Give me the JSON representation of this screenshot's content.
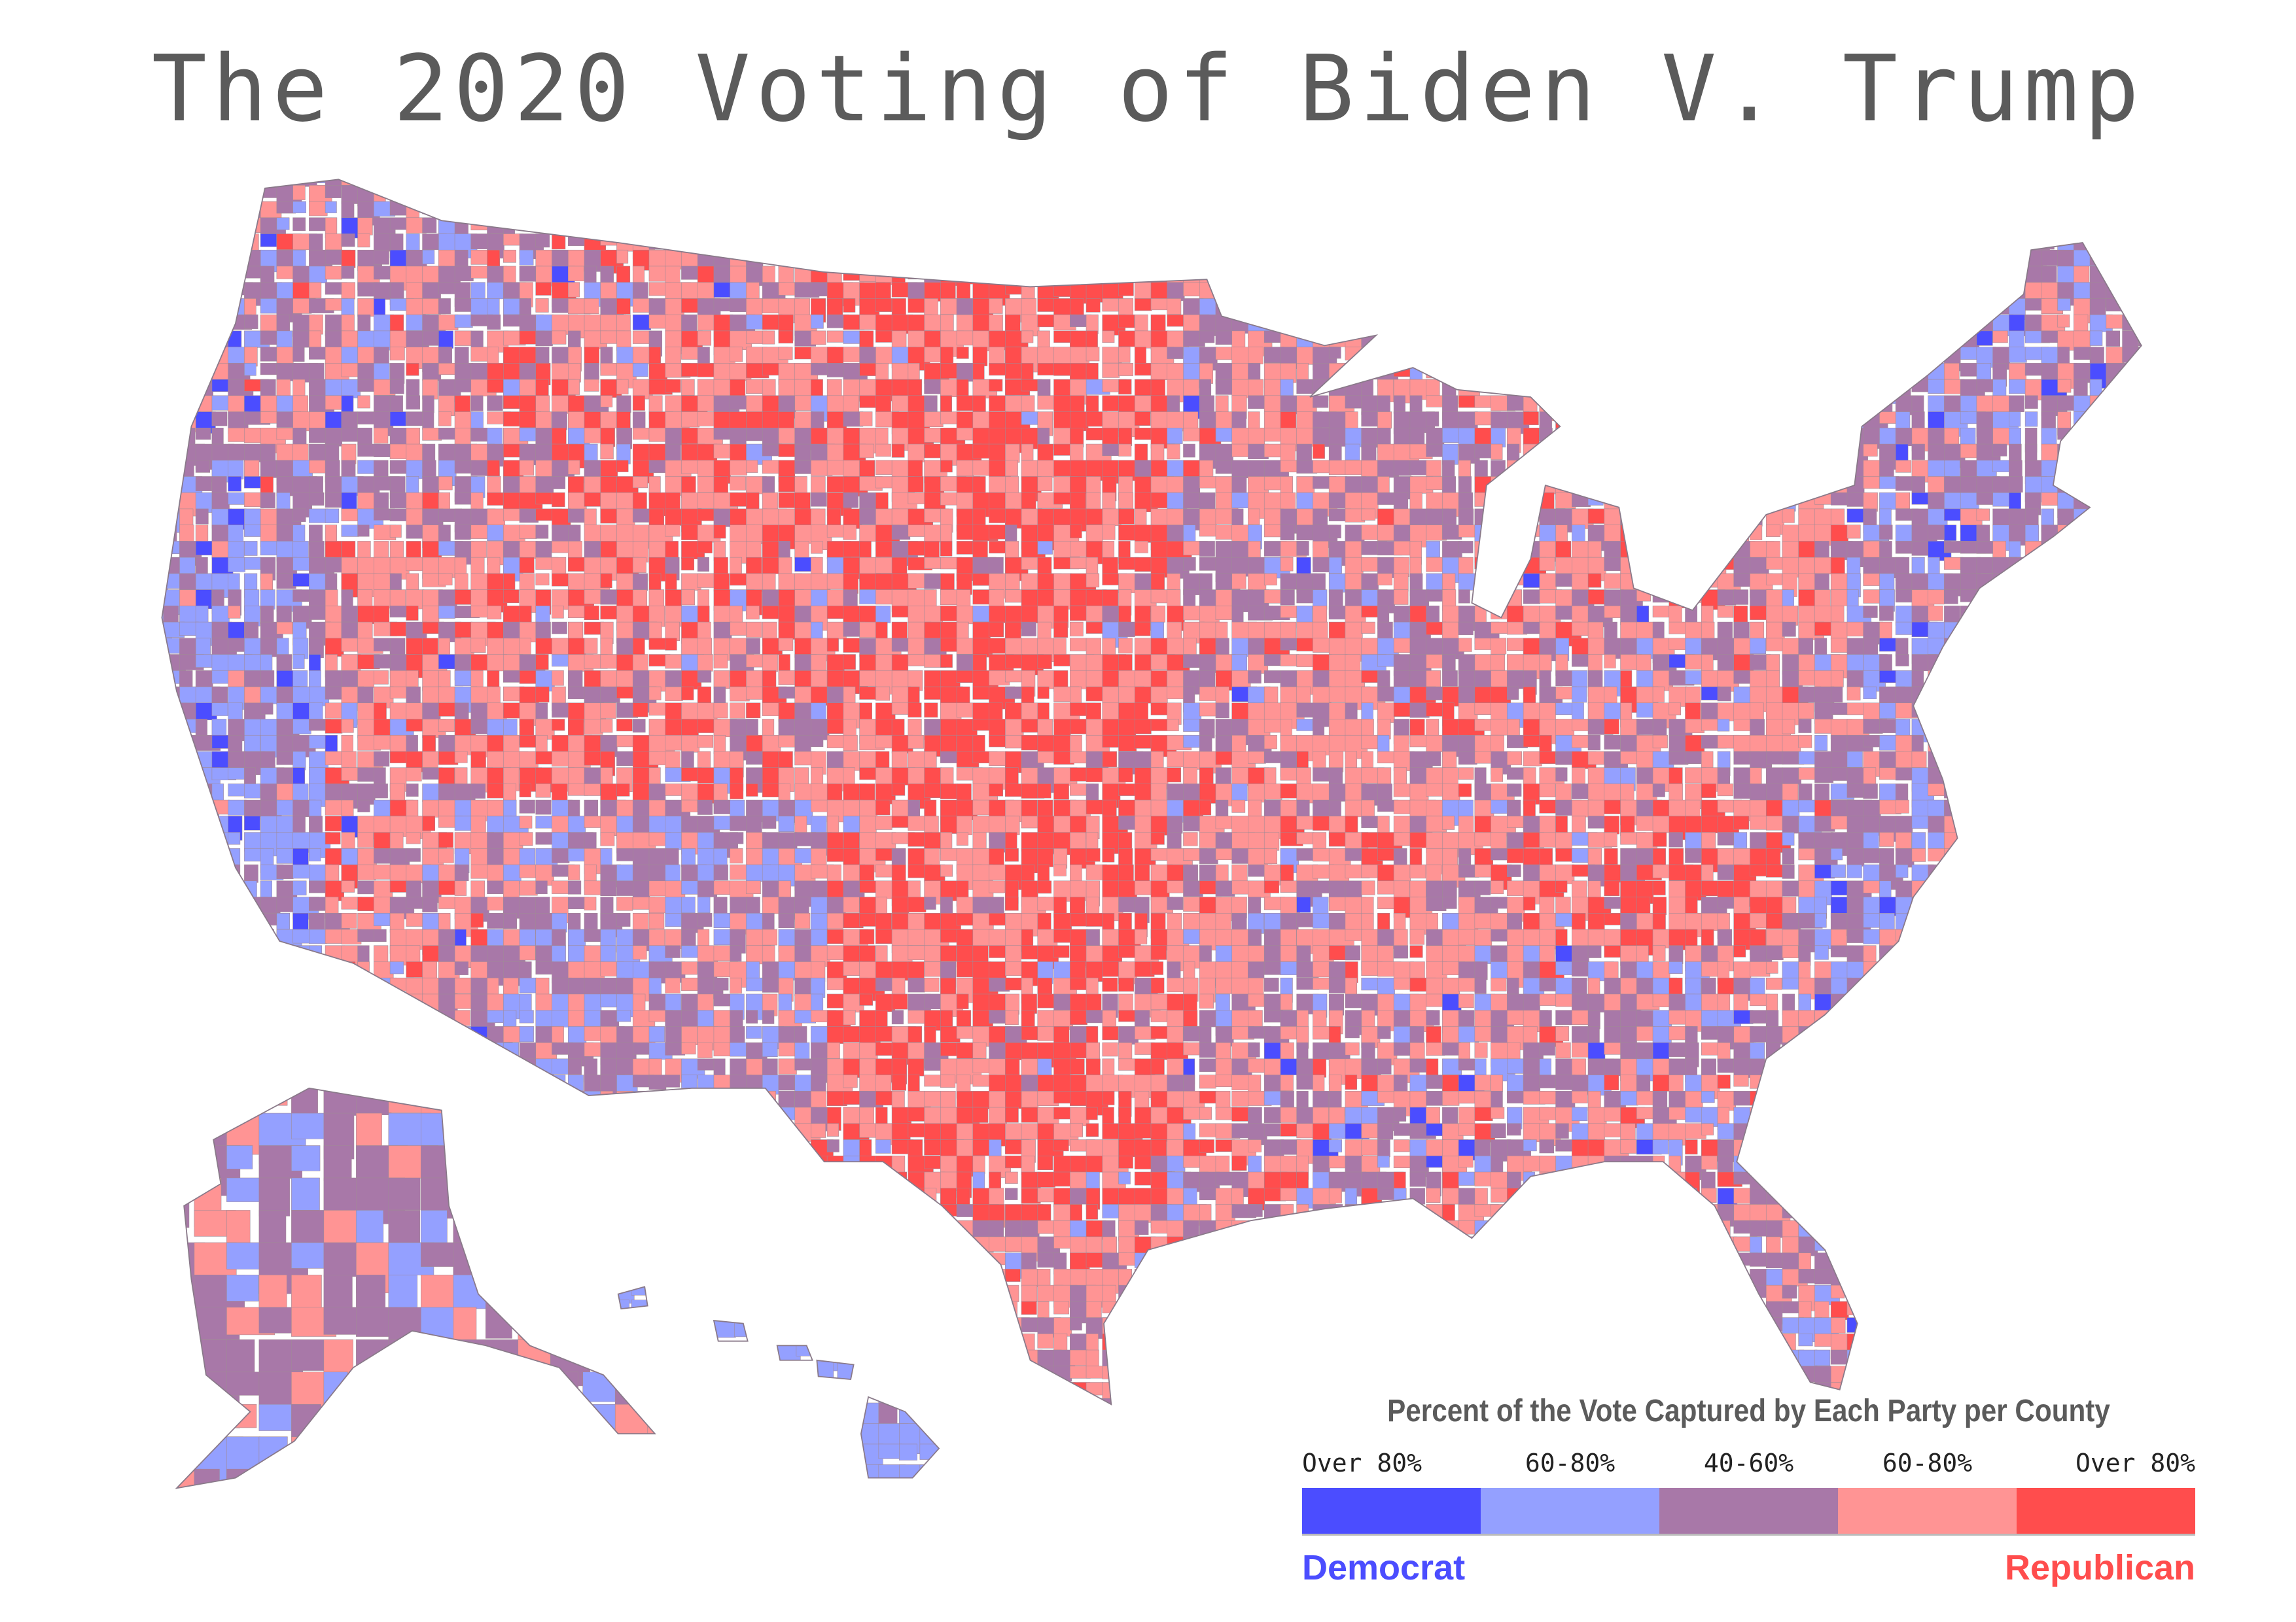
{
  "title": "The 2020 Voting of Biden V. Trump",
  "legend": {
    "title": "Percent of the Vote Captured by Each Party per County",
    "bins": [
      {
        "label": "Over 80%",
        "party": "Democrat",
        "color": "#4b4dff"
      },
      {
        "label": "60-80%",
        "party": "Democrat",
        "color": "#94a0ff"
      },
      {
        "label": "40-60%",
        "party": "Mixed",
        "color": "#a878a8"
      },
      {
        "label": "60-80%",
        "party": "Republican",
        "color": "#ff9494"
      },
      {
        "label": "Over 80%",
        "party": "Republican",
        "color": "#ff4d4d"
      }
    ],
    "democrat_label": "Democrat",
    "republican_label": "Republican",
    "democrat_color": "#4b4dff",
    "republican_color": "#ff4d4d"
  },
  "colors": {
    "text": "#5b5b5b",
    "border": "#8a7a8a"
  }
}
